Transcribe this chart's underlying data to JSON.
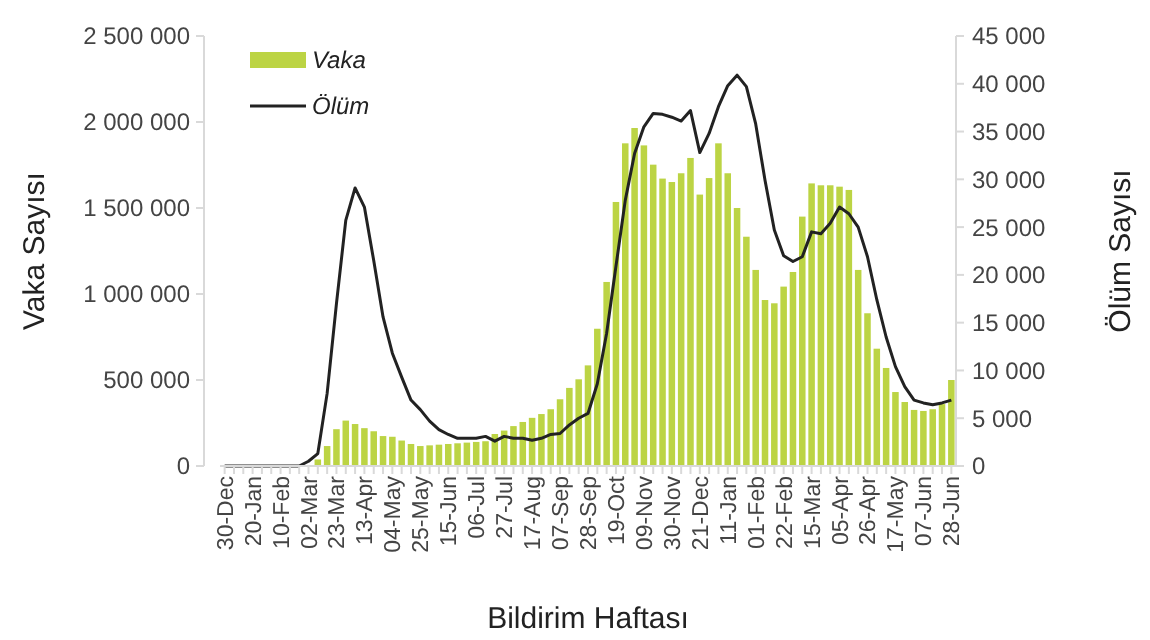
{
  "chart_data": {
    "type": "bar",
    "xlabel": "Bildirim Haftası",
    "ylabel": "Vaka Sayısı",
    "y2label": "Ölüm Sayısı",
    "legend": "top left",
    "grid": false,
    "categories": [
      "30-Dec",
      null,
      null,
      "20-Jan",
      null,
      null,
      "10-Feb",
      null,
      null,
      "02-Mar",
      null,
      null,
      "23-Mar",
      null,
      null,
      "13-Apr",
      null,
      null,
      "04-May",
      null,
      null,
      "25-May",
      null,
      null,
      "15-Jun",
      null,
      null,
      "06-Jul",
      null,
      null,
      "27-Jul",
      null,
      null,
      "17-Aug",
      null,
      null,
      "07-Sep",
      null,
      null,
      "28-Sep",
      null,
      null,
      "19-Oct",
      null,
      null,
      "09-Nov",
      null,
      null,
      "30-Nov",
      null,
      null,
      "21-Dec",
      null,
      null,
      "11-Jan",
      null,
      null,
      "01-Feb",
      null,
      null,
      "22-Feb",
      null,
      null,
      "15-Mar",
      null,
      null,
      "05-Apr",
      null,
      null,
      "26-Apr",
      null,
      null,
      "17-May",
      null,
      null,
      "07-Jun",
      null,
      null,
      "28-Jun"
    ],
    "ylim": [
      0,
      2500000
    ],
    "yticks": [
      {
        "value": 0,
        "label": "0"
      },
      {
        "value": 500000,
        "label": "500 000"
      },
      {
        "value": 1000000,
        "label": "1 000 000"
      },
      {
        "value": 1500000,
        "label": "1 500 000"
      },
      {
        "value": 2000000,
        "label": "2 000 000"
      },
      {
        "value": 2500000,
        "label": "2 500 000"
      }
    ],
    "y2lim": [
      0,
      45000
    ],
    "y2ticks": [
      {
        "value": 0,
        "label": "0"
      },
      {
        "value": 5000,
        "label": "5 000"
      },
      {
        "value": 10000,
        "label": "10 000"
      },
      {
        "value": 15000,
        "label": "15 000"
      },
      {
        "value": 20000,
        "label": "20 000"
      },
      {
        "value": 25000,
        "label": "25 000"
      },
      {
        "value": 30000,
        "label": "30 000"
      },
      {
        "value": 35000,
        "label": "35 000"
      },
      {
        "value": 40000,
        "label": "40 000"
      },
      {
        "value": 45000,
        "label": "45 000"
      }
    ],
    "series": [
      {
        "name": "Vaka",
        "color": "#bcd444",
        "values": [
          null,
          null,
          null,
          null,
          null,
          null,
          null,
          null,
          null,
          null,
          38000,
          116000,
          214000,
          264000,
          244000,
          220000,
          202000,
          174000,
          170000,
          148000,
          128000,
          116000,
          120000,
          124000,
          128000,
          132000,
          136000,
          140000,
          144000,
          186000,
          206000,
          232000,
          256000,
          280000,
          302000,
          330000,
          388000,
          454000,
          504000,
          585000,
          798000,
          1070000,
          1535000,
          1876000,
          1965000,
          1864000,
          1752000,
          1671000,
          1651000,
          1702000,
          1791000,
          1578000,
          1674000,
          1876000,
          1702000,
          1500000,
          1333000,
          1140000,
          965000,
          946000,
          1043000,
          1128000,
          1450000,
          1643000,
          1632000,
          1632000,
          1624000,
          1605000,
          1140000,
          888000,
          682000,
          570000,
          430000,
          372000,
          326000,
          320000,
          330000,
          360000,
          500000
        ]
      },
      {
        "name": "Ölüm",
        "type": "line",
        "axis": "y2",
        "color": "#222222",
        "marker": "none",
        "line_style": "solid",
        "values": [
          0,
          0,
          0,
          0,
          0,
          0,
          0,
          0,
          0,
          500,
          1300,
          7600,
          17000,
          25700,
          29100,
          27100,
          21500,
          15600,
          11800,
          9300,
          6900,
          5900,
          4700,
          3800,
          3300,
          2900,
          2900,
          2900,
          3100,
          2600,
          3100,
          2900,
          2900,
          2700,
          2900,
          3300,
          3400,
          4300,
          5000,
          5500,
          8600,
          13900,
          20900,
          27800,
          32700,
          35500,
          36900,
          36800,
          36500,
          36100,
          37200,
          32800,
          34800,
          37600,
          39800,
          40900,
          39700,
          35800,
          29900,
          24700,
          22000,
          21400,
          21900,
          24500,
          24300,
          25400,
          27100,
          26400,
          25000,
          21900,
          17400,
          13500,
          10400,
          8300,
          6900,
          6600,
          6400,
          6600,
          6900
        ]
      }
    ]
  }
}
